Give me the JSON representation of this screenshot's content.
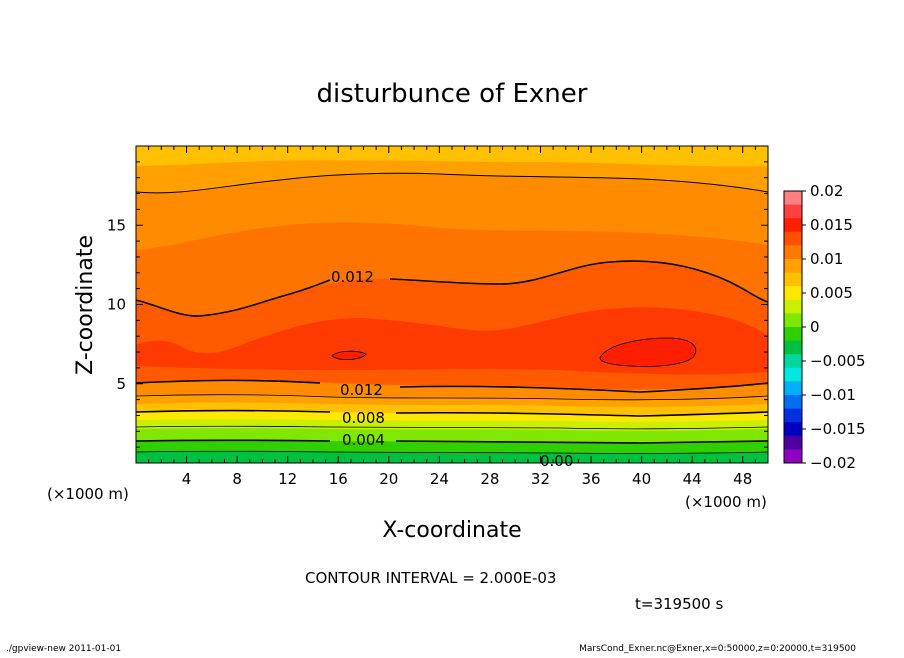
{
  "chart_data": {
    "type": "heatmap",
    "title": "disturbunce of Exner",
    "xlabel": "X-coordinate",
    "ylabel": "Z-coordinate",
    "x_unit_left": "(×1000 m)",
    "x_unit_right": "(×1000 m)",
    "xlim": [
      0,
      50
    ],
    "ylim": [
      0,
      20
    ],
    "x_ticks": [
      4,
      8,
      12,
      16,
      20,
      24,
      28,
      32,
      36,
      40,
      44,
      48
    ],
    "y_ticks": [
      5,
      10,
      15
    ],
    "colorbar": {
      "ticks": [
        "0.02",
        "0.015",
        "0.01",
        "0.005",
        "0",
        "−0.005",
        "−0.01",
        "−0.015",
        "−0.02"
      ],
      "range": [
        -0.02,
        0.02
      ],
      "colors": [
        "#FF8080",
        "#FF4040",
        "#FF2000",
        "#FF5000",
        "#FF7800",
        "#FFA000",
        "#FFC000",
        "#FFE800",
        "#C8F000",
        "#80E800",
        "#30D000",
        "#00C040",
        "#00D8A0",
        "#00E8E0",
        "#00B0F8",
        "#0070F0",
        "#0030E0",
        "#0000C0",
        "#5000A0",
        "#9000C0"
      ]
    },
    "contour_labels": [
      "0.012",
      "0.012",
      "0.008",
      "0.004",
      "0.00"
    ],
    "contour_interval_text": "CONTOUR INTERVAL = 2.000E-03",
    "time_text": "t=319500 s",
    "footer_left": "./gpview-new 2011-01-01",
    "footer_right": "MarsCond_Exner.nc@Exner,x=0:50000,z=0:20000,t=319500",
    "grid": false
  }
}
